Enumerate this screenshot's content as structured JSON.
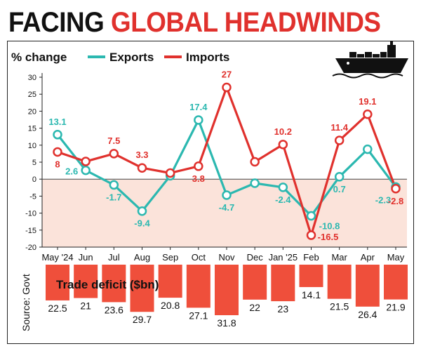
{
  "header": {
    "title_part1": "FACING ",
    "title_part2": "GLOBAL HEADWINDS",
    "title_color_part1": "#111111",
    "title_color_part2": "#e0312d"
  },
  "legend": {
    "unit_label": "% change",
    "exports_label": "Exports",
    "imports_label": "Imports"
  },
  "icons": {
    "ship": "cargo-ship-icon"
  },
  "colors": {
    "exports": "#2bb8b0",
    "imports": "#e0312d",
    "negative_band": "#fbe3da",
    "bar": "#ef4f3b"
  },
  "source": "Source: Govt",
  "chart_data": [
    {
      "type": "line",
      "ylabel": "% change",
      "ylim": [
        -20,
        30
      ],
      "yticks": [
        "30",
        "25",
        "20",
        "15",
        "10",
        "5",
        "0",
        "-5",
        "-10",
        "-15",
        "-20"
      ],
      "categories": [
        "May '24",
        "Jun",
        "Jul",
        "Aug",
        "Sep",
        "Oct",
        "Nov",
        "Dec",
        "Jan '25",
        "Feb",
        "Mar",
        "Apr",
        "May"
      ],
      "series": [
        {
          "name": "Exports",
          "values": [
            13.1,
            2.6,
            -1.7,
            -9.4,
            1.0,
            17.4,
            -4.7,
            -1.2,
            -2.4,
            -10.8,
            0.7,
            8.8,
            -2.3
          ],
          "labels": [
            "13.1",
            "2.6",
            "-1.7",
            "-9.4",
            "",
            "17.4",
            "-4.7",
            "",
            "-2.4",
            "-10.8",
            "0.7",
            "",
            "-2.3"
          ]
        },
        {
          "name": "Imports",
          "values": [
            8,
            5.2,
            7.5,
            3.3,
            1.8,
            3.8,
            27,
            5.1,
            10.2,
            -16.5,
            11.4,
            19.1,
            -2.8
          ],
          "labels": [
            "8",
            "",
            "7.5",
            "3.3",
            "",
            "3.8",
            "27",
            "",
            "10.2",
            "-16.5",
            "11.4",
            "19.1",
            "-2.8"
          ]
        }
      ]
    },
    {
      "type": "bar",
      "title": "Trade deficit ($bn)",
      "categories": [
        "May '24",
        "Jun",
        "Jul",
        "Aug",
        "Sep",
        "Oct",
        "Nov",
        "Dec",
        "Jan '25",
        "Feb",
        "Mar",
        "Apr",
        "May"
      ],
      "values": [
        22.5,
        21,
        23.6,
        29.7,
        20.8,
        27.1,
        31.8,
        22,
        23,
        14.1,
        21.5,
        26.4,
        21.9
      ],
      "labels": [
        "22.5",
        "21",
        "23.6",
        "29.7",
        "20.8",
        "27.1",
        "31.8",
        "22",
        "23",
        "14.1",
        "21.5",
        "26.4",
        "21.9"
      ]
    }
  ]
}
